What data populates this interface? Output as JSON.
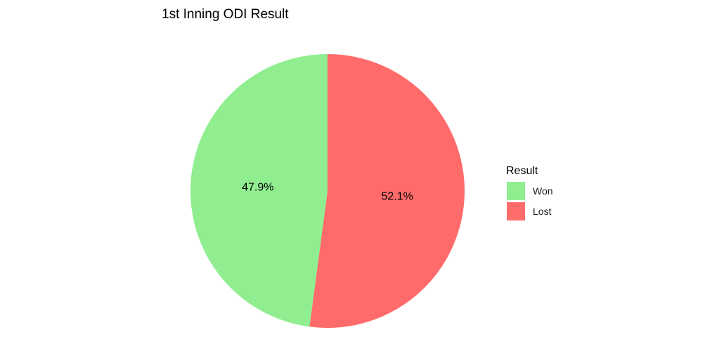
{
  "chart_data": {
    "type": "pie",
    "title": "1st Inning ODI Result",
    "slices": [
      {
        "name": "Won",
        "value": 47.9,
        "label": "47.9%",
        "color": "#90EE90"
      },
      {
        "name": "Lost",
        "value": 52.1,
        "label": "52.1%",
        "color": "#FF6B6B"
      }
    ],
    "start": "top",
    "direction": "counterclockwise-from-top",
    "legend": {
      "title": "Result",
      "placement": "right",
      "entries": [
        "Won",
        "Lost"
      ]
    }
  }
}
